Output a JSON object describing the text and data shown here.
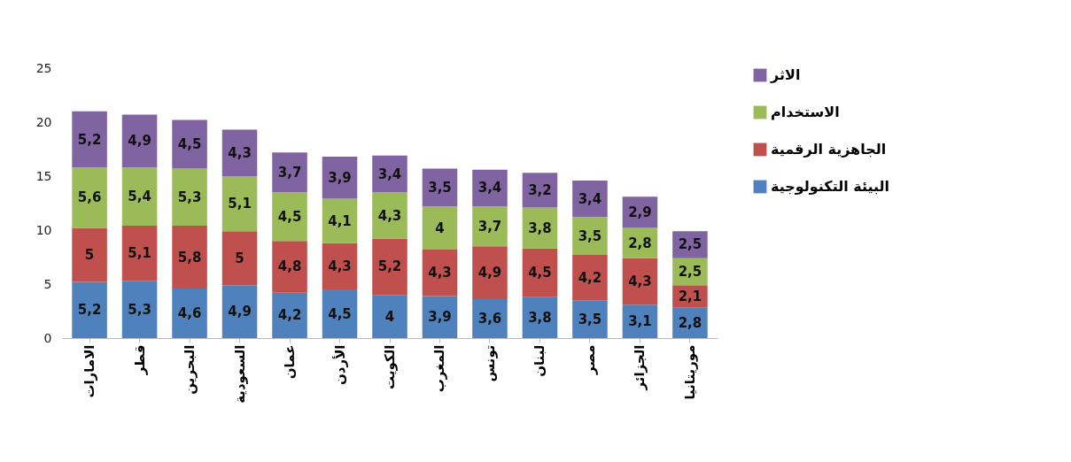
{
  "chart_data": {
    "type": "bar",
    "stacked": true,
    "categories": [
      "الامارات",
      "قطر",
      "البحرين",
      "السعودية",
      "عمان",
      "الأردن",
      "الكويت",
      "المغرب",
      "تونس",
      "لبنان",
      "مصر",
      "الجزائر",
      "موريتانيا"
    ],
    "series": [
      {
        "name": "البيئة التكنولوجية",
        "color": "#4f81bd",
        "values": [
          5.2,
          5.3,
          4.6,
          4.9,
          4.2,
          4.5,
          4,
          3.9,
          3.6,
          3.8,
          3.5,
          3.1,
          2.8
        ],
        "value_labels": [
          "5,2",
          "5,3",
          "4,6",
          "4,9",
          "4,2",
          "4,5",
          "4",
          "3,9",
          "3,6",
          "3,8",
          "3,5",
          "3,1",
          "2,8"
        ]
      },
      {
        "name": "الجاهزية الرقمية",
        "color": "#c0504d",
        "values": [
          5,
          5.1,
          5.8,
          5,
          4.8,
          4.3,
          5.2,
          4.3,
          4.9,
          4.5,
          4.2,
          4.3,
          2.1
        ],
        "value_labels": [
          "5",
          "5,1",
          "5,8",
          "5",
          "4,8",
          "4,3",
          "5,2",
          "4,3",
          "4,9",
          "4,5",
          "4,2",
          "4,3",
          "2,1"
        ]
      },
      {
        "name": "الاستخدام",
        "color": "#9bbb59",
        "values": [
          5.6,
          5.4,
          5.3,
          5.1,
          4.5,
          4.1,
          4.3,
          4,
          3.7,
          3.8,
          3.5,
          2.8,
          2.5
        ],
        "value_labels": [
          "5,6",
          "5,4",
          "5,3",
          "5,1",
          "4,5",
          "4,1",
          "4,3",
          "4",
          "3,7",
          "3,8",
          "3,5",
          "2,8",
          "2,5"
        ]
      },
      {
        "name": "الاثر",
        "color": "#8064a2",
        "values": [
          5.2,
          4.9,
          4.5,
          4.3,
          3.7,
          3.9,
          3.4,
          3.5,
          3.4,
          3.2,
          3.4,
          2.9,
          2.5
        ],
        "value_labels": [
          "5,2",
          "4,9",
          "4,5",
          "4,3",
          "3,7",
          "3,9",
          "3,4",
          "3,5",
          "3,4",
          "3,2",
          "3,4",
          "2,9",
          "2,5"
        ]
      }
    ],
    "ylim": [
      0,
      25
    ],
    "yticks": [
      0,
      5,
      10,
      15,
      20,
      25
    ],
    "grid": false,
    "legend": "right"
  }
}
